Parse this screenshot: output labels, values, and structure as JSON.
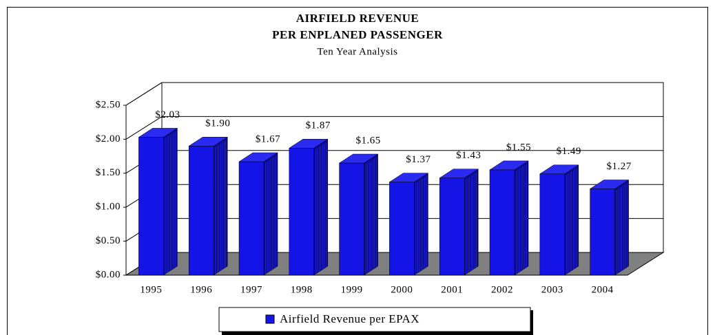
{
  "chart_data": {
    "type": "bar",
    "title": [
      "AIRFIELD REVENUE",
      "PER ENPLANED PASSENGER"
    ],
    "subtitle": "Ten Year Analysis",
    "categories": [
      "1995",
      "1996",
      "1997",
      "1998",
      "1999",
      "2000",
      "2001",
      "2002",
      "2003",
      "2004"
    ],
    "series": [
      {
        "name": "Airfield Revenue per EPAX",
        "color": "#1414e6",
        "values": [
          2.03,
          1.9,
          1.67,
          1.87,
          1.65,
          1.37,
          1.43,
          1.55,
          1.49,
          1.27
        ],
        "value_labels": [
          "$2.03",
          "$1.90",
          "$1.67",
          "$1.87",
          "$1.65",
          "$1.37",
          "$1.43",
          "$1.55",
          "$1.49",
          "$1.27"
        ]
      }
    ],
    "ylim": [
      0,
      2.5
    ],
    "yticks": [
      {
        "value": 0,
        "label": "$0.00"
      },
      {
        "value": 0.5,
        "label": "$0.50"
      },
      {
        "value": 1,
        "label": "$1.00"
      },
      {
        "value": 1.5,
        "label": "$1.50"
      },
      {
        "value": 2,
        "label": "$2.00"
      },
      {
        "value": 2.5,
        "label": "$2.50"
      }
    ],
    "grid": true,
    "legend": "bottom"
  }
}
